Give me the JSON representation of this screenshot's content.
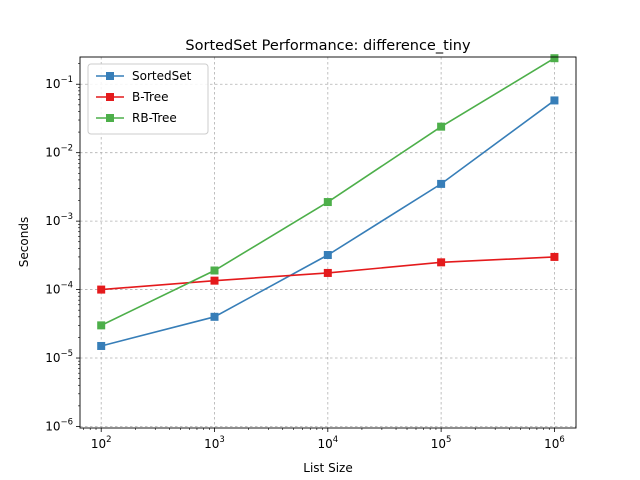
{
  "chart_data": {
    "type": "line",
    "title": "SortedSet Performance: difference_tiny",
    "xlabel": "List Size",
    "ylabel": "Seconds",
    "xscale": "log",
    "yscale": "log",
    "xlim": [
      65,
      1550000
    ],
    "ylim": [
      9.5e-07,
      0.25
    ],
    "grid": true,
    "legend_position": "upper-left",
    "x": [
      100,
      1000,
      10000,
      100000,
      1000000
    ],
    "x_tick_labels": [
      {
        "base": "10",
        "exp": "2"
      },
      {
        "base": "10",
        "exp": "3"
      },
      {
        "base": "10",
        "exp": "4"
      },
      {
        "base": "10",
        "exp": "5"
      },
      {
        "base": "10",
        "exp": "6"
      }
    ],
    "y_tick_labels": [
      {
        "base": "10",
        "exp": "−6"
      },
      {
        "base": "10",
        "exp": "−5"
      },
      {
        "base": "10",
        "exp": "−4"
      },
      {
        "base": "10",
        "exp": "−3"
      },
      {
        "base": "10",
        "exp": "−2"
      },
      {
        "base": "10",
        "exp": "−1"
      }
    ],
    "series": [
      {
        "name": "SortedSet",
        "color": "#377eb8",
        "values": [
          1.5e-05,
          4e-05,
          0.00032,
          0.0035,
          0.058
        ]
      },
      {
        "name": "B-Tree",
        "color": "#e41a1c",
        "values": [
          0.0001,
          0.000135,
          0.000175,
          0.00025,
          0.0003
        ]
      },
      {
        "name": "RB-Tree",
        "color": "#4daf4a",
        "values": [
          3e-05,
          0.00019,
          0.0019,
          0.024,
          0.24
        ]
      }
    ]
  }
}
